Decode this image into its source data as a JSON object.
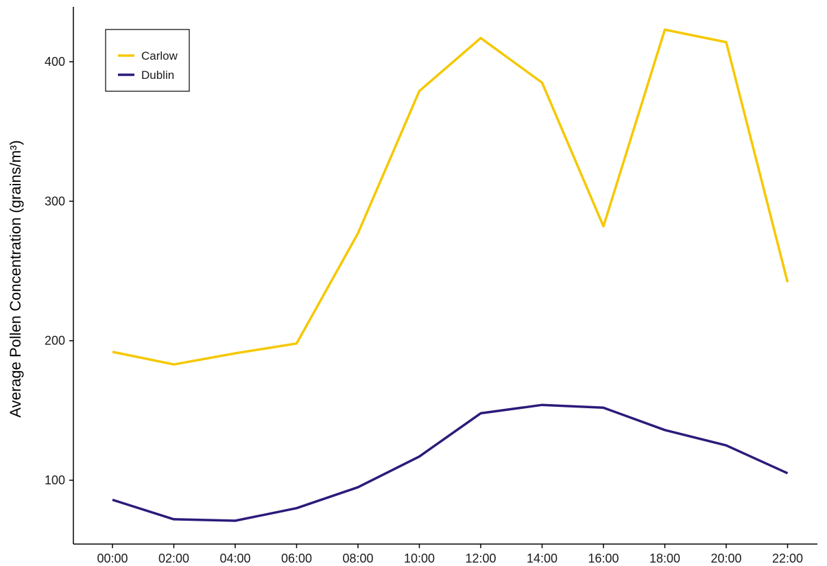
{
  "chart_data": {
    "type": "line",
    "title": "",
    "xlabel": "",
    "ylabel": "Average Pollen Concentration (grains/m³)",
    "categories": [
      "00:00",
      "02:00",
      "04:00",
      "06:00",
      "08:00",
      "10:00",
      "12:00",
      "14:00",
      "16:00",
      "18:00",
      "20:00",
      "22:00"
    ],
    "series": [
      {
        "name": "Carlow",
        "color": "#f5c800",
        "values": [
          192,
          183,
          191,
          198,
          277,
          379,
          417,
          385,
          282,
          423,
          414,
          242
        ]
      },
      {
        "name": "Dublin",
        "color": "#2d1a7a",
        "values": [
          86,
          72,
          71,
          80,
          95,
          117,
          148,
          154,
          152,
          136,
          125,
          105
        ]
      }
    ],
    "ylim": [
      55,
      440
    ],
    "yticks": [
      100,
      200,
      300,
      400
    ],
    "grid": false,
    "legend": {
      "position": "top-left",
      "entries": [
        "Carlow",
        "Dublin"
      ]
    }
  }
}
